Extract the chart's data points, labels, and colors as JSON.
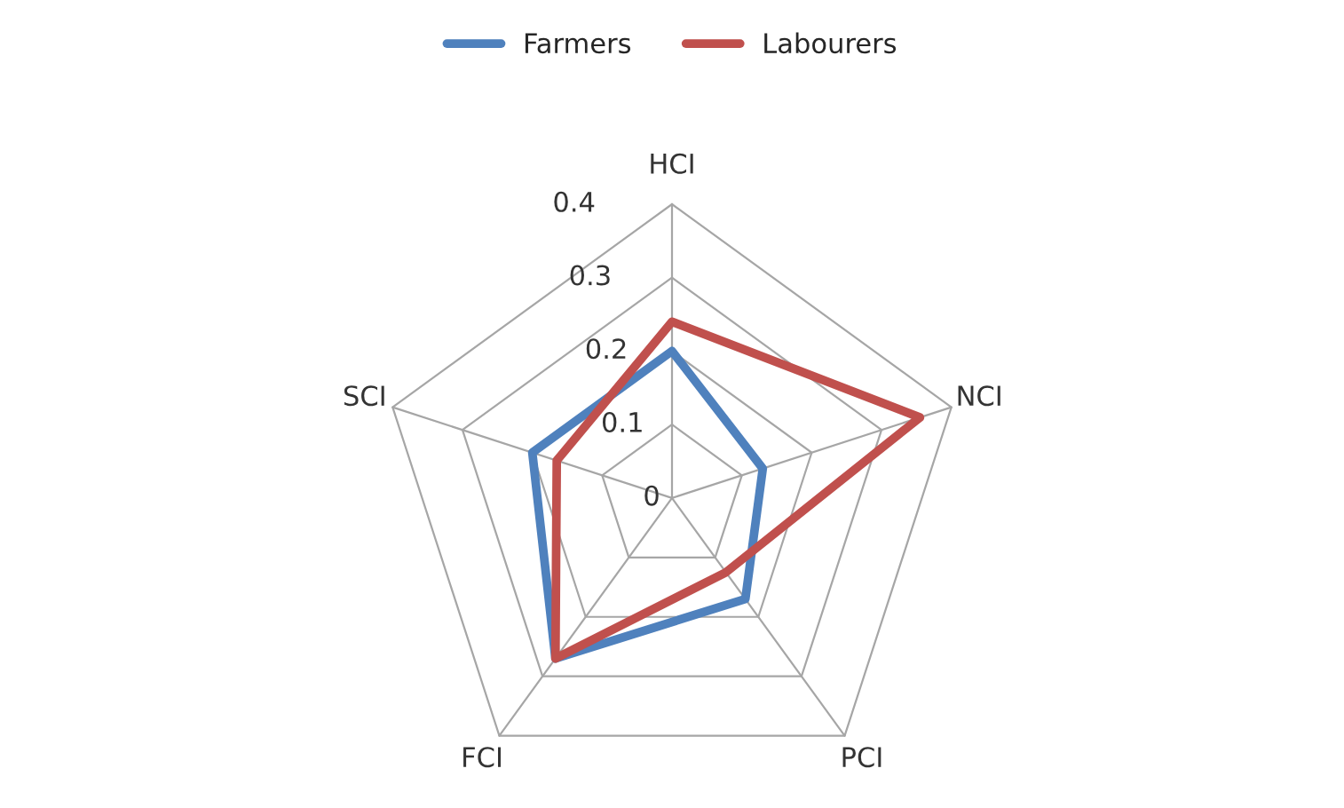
{
  "chart_data": {
    "type": "radar",
    "categories": [
      "HCI",
      "NCI",
      "PCI",
      "FCI",
      "SCI"
    ],
    "series": [
      {
        "name": "Farmers",
        "color": "#4f81bd",
        "values": [
          0.2,
          0.13,
          0.17,
          0.27,
          0.2
        ]
      },
      {
        "name": "Labourers",
        "color": "#c0504d",
        "values": [
          0.24,
          0.355,
          0.125,
          0.27,
          0.165
        ]
      }
    ],
    "ylim": [
      0,
      0.4
    ],
    "yticks": [
      0,
      0.1,
      0.2,
      0.3,
      0.4
    ],
    "grid": true,
    "legend": "top",
    "marker": "none",
    "line_style": "solid"
  }
}
